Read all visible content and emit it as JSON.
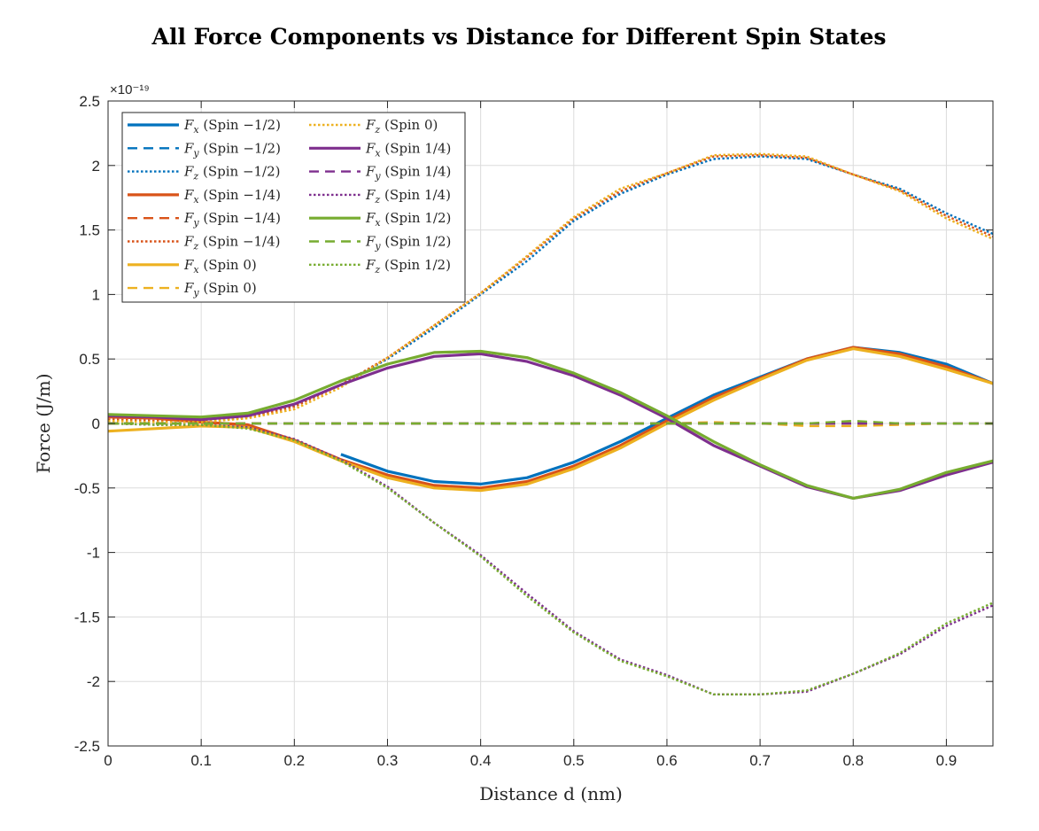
{
  "chart_data": {
    "type": "line",
    "title": "All Force Components vs Distance for Different Spin States",
    "xlabel": "Distance d (nm)",
    "ylabel": "Force (J/m)",
    "y_exponent_label": "×10⁻¹⁹",
    "xlim": [
      0,
      0.95
    ],
    "ylim": [
      -2.5,
      2.5
    ],
    "x_ticks": [
      0,
      0.1,
      0.2,
      0.3,
      0.4,
      0.5,
      0.6,
      0.7,
      0.8,
      0.9
    ],
    "x_tick_labels": [
      "0",
      "0.1",
      "0.2",
      "0.3",
      "0.4",
      "0.5",
      "0.6",
      "0.7",
      "0.8",
      "0.9"
    ],
    "y_ticks": [
      -2.5,
      -2,
      -1.5,
      -1,
      -0.5,
      0,
      0.5,
      1,
      1.5,
      2,
      2.5
    ],
    "y_tick_labels": [
      "-2.5",
      "-2",
      "-1.5",
      "-1",
      "-0.5",
      "0",
      "0.5",
      "1",
      "1.5",
      "2",
      "2.5"
    ],
    "grid": true,
    "legend_position": "top-left",
    "legend_columns": 2,
    "x": [
      0,
      0.05,
      0.1,
      0.15,
      0.2,
      0.25,
      0.3,
      0.35,
      0.4,
      0.45,
      0.5,
      0.55,
      0.6,
      0.65,
      0.7,
      0.75,
      0.8,
      0.85,
      0.9,
      0.95
    ],
    "series": [
      {
        "name": "Fx (Spin −1/2)",
        "component": "x",
        "spin": "−1/2",
        "color": "#0072BD",
        "dash": "solid",
        "x_start": 0.25,
        "values": [
          null,
          null,
          null,
          null,
          null,
          -0.24,
          -0.37,
          -0.45,
          -0.47,
          -0.42,
          -0.3,
          -0.14,
          0.04,
          0.22,
          0.36,
          0.5,
          0.59,
          0.55,
          0.46,
          0.31
        ]
      },
      {
        "name": "Fy (Spin −1/2)",
        "component": "y",
        "spin": "−1/2",
        "color": "#0072BD",
        "dash": "dashed",
        "values": [
          0,
          0,
          0,
          0,
          0,
          0,
          0,
          0,
          0,
          0,
          0,
          0,
          0,
          0,
          0,
          0,
          0,
          0,
          0,
          0
        ]
      },
      {
        "name": "Fz (Spin −1/2)",
        "component": "z",
        "spin": "−1/2",
        "color": "#0072BD",
        "dash": "dotted",
        "values": [
          0.03,
          0.02,
          0.01,
          0.05,
          0.14,
          0.3,
          0.5,
          0.74,
          1.0,
          1.26,
          1.57,
          1.78,
          1.93,
          2.05,
          2.07,
          2.05,
          1.93,
          1.82,
          1.63,
          1.47
        ]
      },
      {
        "name": "Fx (Spin −1/4)",
        "component": "x",
        "spin": "−1/4",
        "color": "#D95319",
        "dash": "solid",
        "values": [
          0.05,
          0.04,
          0.01,
          -0.01,
          -0.13,
          -0.28,
          -0.4,
          -0.48,
          -0.5,
          -0.45,
          -0.33,
          -0.17,
          0.02,
          0.2,
          0.35,
          0.5,
          0.59,
          0.54,
          0.44,
          0.31
        ]
      },
      {
        "name": "Fy (Spin −1/4)",
        "component": "y",
        "spin": "−1/4",
        "color": "#D95319",
        "dash": "dashed",
        "values": [
          0,
          0,
          0,
          0,
          0,
          0,
          0,
          0,
          0,
          0,
          0,
          0,
          0,
          0,
          0,
          0,
          0,
          0,
          0,
          0
        ]
      },
      {
        "name": "Fz (Spin −1/4)",
        "component": "z",
        "spin": "−1/4",
        "color": "#D95319",
        "dash": "dotted",
        "values": [
          0.03,
          0.02,
          0.01,
          0.05,
          0.13,
          0.3,
          0.51,
          0.76,
          1.01,
          1.29,
          1.59,
          1.8,
          1.94,
          2.07,
          2.08,
          2.06,
          1.93,
          1.81,
          1.61,
          1.45
        ]
      },
      {
        "name": "Fx (Spin 0)",
        "component": "x",
        "spin": "0",
        "color": "#EDB120",
        "dash": "solid",
        "values": [
          -0.06,
          -0.04,
          -0.02,
          -0.03,
          -0.14,
          -0.29,
          -0.42,
          -0.5,
          -0.52,
          -0.47,
          -0.35,
          -0.19,
          0.0,
          0.18,
          0.34,
          0.49,
          0.58,
          0.52,
          0.42,
          0.31
        ]
      },
      {
        "name": "Fy (Spin 0)",
        "component": "y",
        "spin": "0",
        "color": "#EDB120",
        "dash": "dashed",
        "values": [
          0,
          0,
          0,
          0,
          0,
          0,
          0,
          0,
          0,
          0,
          0,
          0,
          0,
          0.01,
          0,
          -0.02,
          -0.02,
          -0.01,
          0,
          0
        ]
      },
      {
        "name": "Fz (Spin 0)",
        "component": "z",
        "spin": "0",
        "color": "#EDB120",
        "dash": "dotted",
        "values": [
          0.02,
          0.01,
          0.01,
          0.04,
          0.11,
          0.28,
          0.51,
          0.76,
          1.01,
          1.3,
          1.6,
          1.82,
          1.94,
          2.08,
          2.09,
          2.07,
          1.93,
          1.8,
          1.59,
          1.43
        ]
      },
      {
        "name": "Fx (Spin 1/4)",
        "component": "x",
        "spin": "1/4",
        "color": "#7E2F8E",
        "dash": "solid",
        "values": [
          0.06,
          0.05,
          0.03,
          0.06,
          0.15,
          0.3,
          0.43,
          0.52,
          0.54,
          0.48,
          0.37,
          0.22,
          0.04,
          -0.17,
          -0.33,
          -0.49,
          -0.58,
          -0.52,
          -0.4,
          -0.3
        ]
      },
      {
        "name": "Fy (Spin 1/4)",
        "component": "y",
        "spin": "1/4",
        "color": "#7E2F8E",
        "dash": "dashed",
        "values": [
          0,
          0,
          0,
          0,
          0,
          0,
          0,
          0,
          0,
          0,
          0,
          0,
          0,
          0,
          0,
          0,
          0,
          0,
          0,
          0
        ]
      },
      {
        "name": "Fz (Spin 1/4)",
        "component": "z",
        "spin": "1/4",
        "color": "#7E2F8E",
        "dash": "dotted",
        "values": [
          0,
          -0.01,
          -0.01,
          -0.03,
          -0.12,
          -0.28,
          -0.49,
          -0.77,
          -1.02,
          -1.32,
          -1.61,
          -1.83,
          -1.95,
          -2.1,
          -2.1,
          -2.08,
          -1.94,
          -1.79,
          -1.57,
          -1.41
        ]
      },
      {
        "name": "Fx (Spin 1/2)",
        "component": "x",
        "spin": "1/2",
        "color": "#77AC30",
        "dash": "solid",
        "values": [
          0.07,
          0.06,
          0.05,
          0.08,
          0.18,
          0.33,
          0.46,
          0.55,
          0.56,
          0.51,
          0.39,
          0.24,
          0.06,
          -0.14,
          -0.32,
          -0.48,
          -0.58,
          -0.51,
          -0.38,
          -0.29
        ]
      },
      {
        "name": "Fy (Spin 1/2)",
        "component": "y",
        "spin": "1/2",
        "color": "#77AC30",
        "dash": "dashed",
        "values": [
          0,
          0,
          0,
          0,
          0,
          0,
          0,
          0,
          0,
          0,
          0,
          0,
          0,
          0,
          0,
          0,
          0.02,
          0,
          0,
          0
        ]
      },
      {
        "name": "Fz (Spin 1/2)",
        "component": "z",
        "spin": "1/2",
        "color": "#77AC30",
        "dash": "dotted",
        "values": [
          0,
          -0.01,
          -0.01,
          -0.04,
          -0.13,
          -0.29,
          -0.5,
          -0.77,
          -1.03,
          -1.34,
          -1.62,
          -1.84,
          -1.96,
          -2.1,
          -2.1,
          -2.07,
          -1.94,
          -1.78,
          -1.55,
          -1.39
        ]
      }
    ]
  }
}
